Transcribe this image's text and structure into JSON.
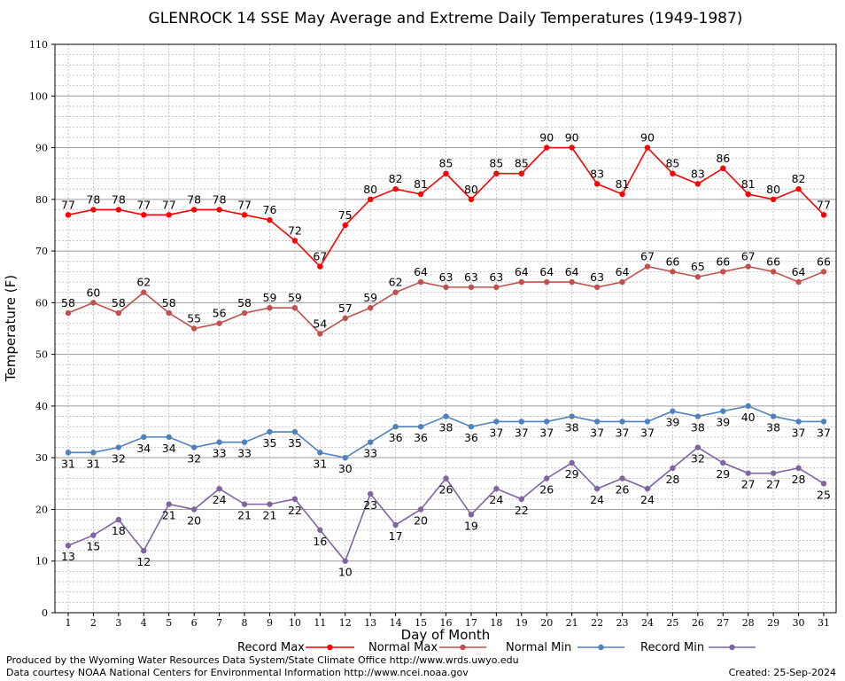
{
  "chart_data": {
    "type": "line",
    "title": "GLENROCK 14 SSE May Average and Extreme Daily Temperatures (1949-1987)",
    "xlabel": "Day of Month",
    "ylabel": "Temperature (F)",
    "ylim": [
      0,
      110
    ],
    "yticks": [
      0,
      10,
      20,
      30,
      40,
      50,
      60,
      70,
      80,
      90,
      100,
      110
    ],
    "grid": true,
    "legend_position": "bottom",
    "x": [
      1,
      2,
      3,
      4,
      5,
      6,
      7,
      8,
      9,
      10,
      11,
      12,
      13,
      14,
      15,
      16,
      17,
      18,
      19,
      20,
      21,
      22,
      23,
      24,
      25,
      26,
      27,
      28,
      29,
      30,
      31
    ],
    "series": [
      {
        "name": "Record Max",
        "color": "#ff0000",
        "values": [
          77,
          78,
          78,
          77,
          77,
          78,
          78,
          77,
          76,
          72,
          67,
          75,
          80,
          82,
          81,
          85,
          80,
          85,
          85,
          90,
          90,
          83,
          81,
          90,
          85,
          83,
          86,
          81,
          80,
          82,
          77
        ],
        "label_side": "above"
      },
      {
        "name": "Normal Max",
        "color": "#c0504d",
        "values": [
          58,
          60,
          58,
          62,
          58,
          55,
          56,
          58,
          59,
          59,
          54,
          57,
          59,
          62,
          64,
          63,
          63,
          63,
          64,
          64,
          64,
          63,
          64,
          67,
          66,
          65,
          66,
          67,
          66,
          64,
          66
        ],
        "label_side": "above"
      },
      {
        "name": "Normal Min",
        "color": "#4f81bd",
        "values": [
          31,
          31,
          32,
          34,
          34,
          32,
          33,
          33,
          35,
          35,
          31,
          30,
          33,
          36,
          36,
          38,
          36,
          37,
          37,
          37,
          38,
          37,
          37,
          37,
          39,
          38,
          39,
          40,
          38,
          37,
          37
        ],
        "label_side": "below"
      },
      {
        "name": "Record Min",
        "color": "#8064a2",
        "values": [
          13,
          15,
          18,
          12,
          21,
          20,
          24,
          21,
          21,
          22,
          16,
          10,
          23,
          17,
          20,
          26,
          19,
          24,
          22,
          26,
          29,
          24,
          26,
          24,
          28,
          32,
          29,
          27,
          27,
          28,
          25
        ],
        "label_side": "below"
      }
    ]
  },
  "footer": {
    "line1": "Produced by the Wyoming Water Resources Data System/State Climate Office http://www.wrds.uwyo.edu",
    "line2": "Data courtesy NOAA National Centers for Environmental Information http://www.ncei.noaa.gov",
    "created": "Created:  25-Sep-2024"
  }
}
